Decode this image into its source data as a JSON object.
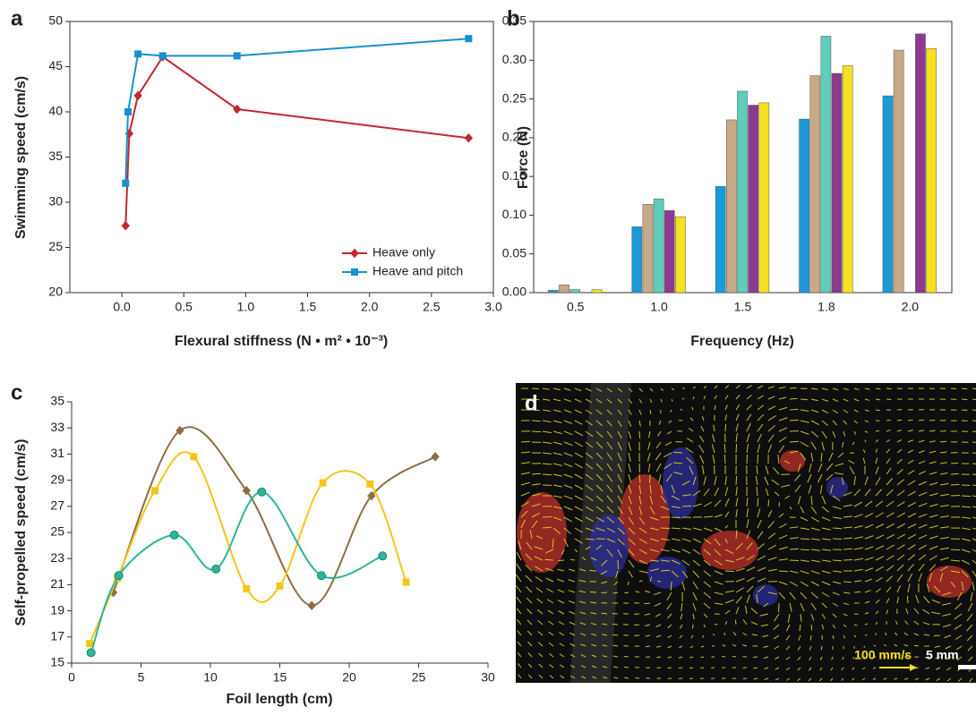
{
  "chart_data": [
    {
      "type": "line",
      "panel_label": "a",
      "x_label": "Flexural stiffness (N • m² • 10⁻³)",
      "y_label": "Swimming speed (cm/s)",
      "xlim": [
        -0.42,
        3.0
      ],
      "xticks": [
        {
          "value": 0,
          "label": "0.0"
        },
        0.5,
        {
          "value": 1,
          "label": "1.0"
        },
        1.5,
        {
          "value": 2,
          "label": "2.0"
        },
        2.5,
        {
          "value": 3,
          "label": "3.0"
        }
      ],
      "ylim": [
        20,
        50
      ],
      "yticks": [
        20,
        25,
        30,
        35,
        40,
        45,
        50
      ],
      "legend": "lower right",
      "smooth": false,
      "series": [
        {
          "name": "Heave only",
          "color": "#c1272d",
          "marker": "diamond",
          "x": [
            0.03,
            0.06,
            0.13,
            0.33,
            0.93,
            2.8
          ],
          "values": [
            27.4,
            37.6,
            41.8,
            46.1,
            40.3,
            37.1
          ]
        },
        {
          "name": "Heave and pitch",
          "color": "#1a8fd0",
          "marker": "square",
          "x": [
            0.03,
            0.05,
            0.13,
            0.33,
            0.93,
            2.8
          ],
          "values": [
            32.1,
            40.0,
            46.4,
            46.2,
            46.2,
            48.1
          ]
        }
      ]
    },
    {
      "type": "bar",
      "panel_label": "b",
      "x_label": "Frequency (Hz)",
      "y_label": "Force (N)",
      "categories": [
        "0.5",
        "1.0",
        "1.5",
        "1.8",
        "2.0"
      ],
      "ylim": [
        0,
        0.35
      ],
      "yticks": [
        {
          "value": 0,
          "label": "0.00"
        },
        0.05,
        {
          "value": 0.1,
          "label": "0.10"
        },
        0.15,
        {
          "value": 0.2,
          "label": "0.20"
        },
        0.25,
        {
          "value": 0.3,
          "label": "0.30"
        },
        0.35
      ],
      "series": [
        {
          "color": "#1a9ad7",
          "values": [
            0.003,
            0.085,
            0.137,
            0.224,
            0.254
          ]
        },
        {
          "color": "#c8a987",
          "values": [
            0.01,
            0.114,
            0.223,
            0.28,
            0.313
          ]
        },
        {
          "color": "#5fcdb9",
          "values": [
            0.004,
            0.121,
            0.26,
            0.331,
            null
          ]
        },
        {
          "color": "#8b3a8f",
          "values": [
            null,
            0.106,
            0.242,
            0.283,
            0.334
          ]
        },
        {
          "color": "#f5e21c",
          "values": [
            0.004,
            0.098,
            0.245,
            0.293,
            0.315
          ]
        }
      ]
    },
    {
      "type": "line",
      "panel_label": "c",
      "x_label": "Foil length (cm)",
      "y_label": "Self-propelled  speed (cm/s)",
      "xlim": [
        0,
        30
      ],
      "xticks": [
        0,
        5,
        10,
        15,
        20,
        25,
        30
      ],
      "ylim": [
        15,
        35
      ],
      "yticks": [
        15,
        17,
        19,
        21,
        23,
        25,
        27,
        29,
        31,
        33,
        35
      ],
      "smooth": true,
      "series": [
        {
          "color": "#8c6d45",
          "marker": "diamond",
          "x": [
            3.0,
            7.8,
            12.6,
            17.3,
            21.6,
            26.2
          ],
          "values": [
            20.4,
            32.8,
            28.2,
            19.4,
            27.8,
            30.8
          ]
        },
        {
          "color": "#f5c518",
          "marker": "square",
          "x": [
            1.3,
            3.3,
            6.0,
            8.8,
            12.6,
            15.0,
            18.1,
            21.5,
            24.1
          ],
          "values": [
            16.5,
            21.5,
            28.2,
            30.8,
            20.7,
            20.9,
            28.8,
            28.7,
            21.2
          ]
        },
        {
          "color": "#2bb59a",
          "marker": "circle",
          "x": [
            1.4,
            3.4,
            7.4,
            10.4,
            13.7,
            18.0,
            22.4
          ],
          "values": [
            15.8,
            21.7,
            24.8,
            22.2,
            28.1,
            21.7,
            23.2
          ]
        }
      ]
    }
  ],
  "image_panel": {
    "label": "d",
    "velocity_scale": "100 mm/s",
    "length_scale": "5 mm"
  }
}
